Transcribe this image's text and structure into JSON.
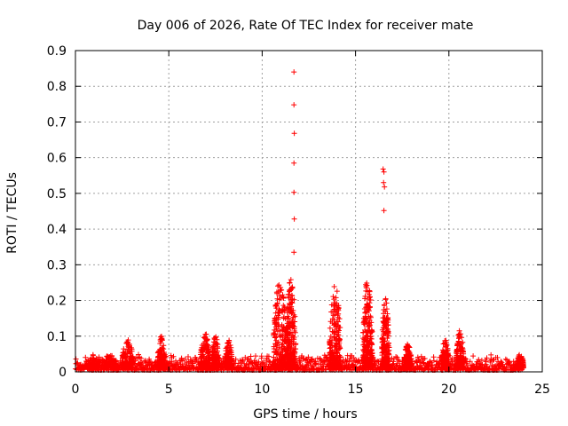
{
  "chart_data": {
    "type": "scatter",
    "title": "Day 006 of 2026, Rate Of TEC Index for receiver mate",
    "xlabel": "GPS time / hours",
    "ylabel": "ROTI / TECUs",
    "xlim": [
      0,
      25
    ],
    "ylim": [
      0,
      0.9
    ],
    "x_ticks": [
      "0",
      "5",
      "10",
      "15",
      "20",
      "25"
    ],
    "y_ticks": [
      "0",
      "0.1",
      "0.2",
      "0.3",
      "0.4",
      "0.5",
      "0.6",
      "0.7",
      "0.8",
      "0.9"
    ],
    "grid": true,
    "marker": "plus",
    "color": "#ff0000",
    "baseline": {
      "x_range": [
        0,
        24
      ],
      "y_min": 0.005,
      "y_max": 0.05
    },
    "bursts": [
      {
        "x_range": [
          0.7,
          1.3
        ],
        "y_max": 0.05
      },
      {
        "x_range": [
          1.5,
          2.2
        ],
        "y_max": 0.05
      },
      {
        "x_range": [
          2.5,
          3.1
        ],
        "y_max": 0.09
      },
      {
        "x_range": [
          4.4,
          4.8
        ],
        "y_max": 0.1
      },
      {
        "x_range": [
          6.7,
          7.2
        ],
        "y_max": 0.11
      },
      {
        "x_range": [
          7.3,
          7.7
        ],
        "y_max": 0.1
      },
      {
        "x_range": [
          8.0,
          8.4
        ],
        "y_max": 0.09
      },
      {
        "x_range": [
          10.6,
          11.3
        ],
        "y_max": 0.26
      },
      {
        "x_range": [
          11.3,
          11.8
        ],
        "y_max": 0.27
      },
      {
        "x_range": [
          13.6,
          14.2
        ],
        "y_max": 0.25
      },
      {
        "x_range": [
          15.4,
          15.9
        ],
        "y_max": 0.27
      },
      {
        "x_range": [
          16.4,
          16.8
        ],
        "y_max": 0.21
      },
      {
        "x_range": [
          17.6,
          18.0
        ],
        "y_max": 0.08
      },
      {
        "x_range": [
          19.6,
          20.0
        ],
        "y_max": 0.09
      },
      {
        "x_range": [
          20.4,
          20.8
        ],
        "y_max": 0.12
      },
      {
        "x_range": [
          23.6,
          24.0
        ],
        "y_max": 0.05
      }
    ],
    "outliers": [
      {
        "x": 11.7,
        "y": 0.84
      },
      {
        "x": 11.7,
        "y": 0.748
      },
      {
        "x": 11.72,
        "y": 0.668
      },
      {
        "x": 11.7,
        "y": 0.585
      },
      {
        "x": 11.7,
        "y": 0.503
      },
      {
        "x": 11.72,
        "y": 0.428
      },
      {
        "x": 11.7,
        "y": 0.335
      },
      {
        "x": 16.48,
        "y": 0.568
      },
      {
        "x": 16.52,
        "y": 0.56
      },
      {
        "x": 16.5,
        "y": 0.53
      },
      {
        "x": 16.55,
        "y": 0.518
      },
      {
        "x": 16.52,
        "y": 0.452
      }
    ]
  }
}
